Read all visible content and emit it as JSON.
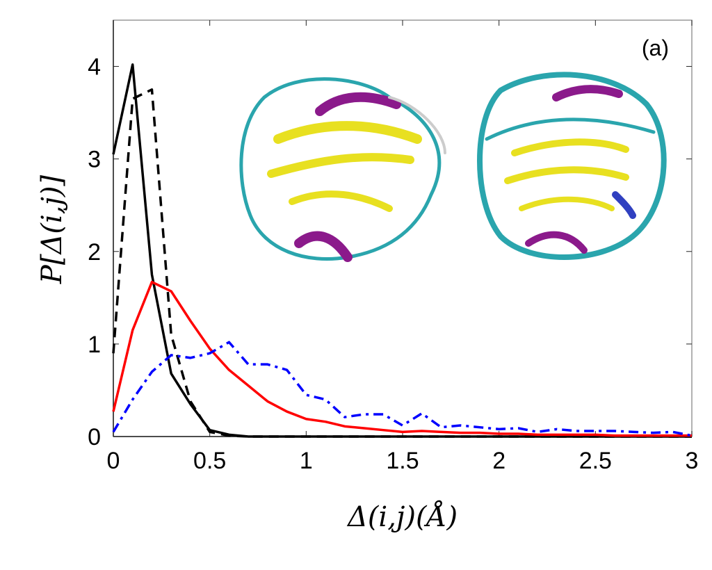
{
  "chart_data": {
    "type": "line",
    "title": "",
    "annotation": "(a)",
    "xlabel": "Δ(i,j)(Å)",
    "ylabel": "P[Δ(i,j)]",
    "xlim": [
      0,
      3
    ],
    "ylim": [
      0,
      4.5
    ],
    "xticks": [
      0,
      0.5,
      1,
      1.5,
      2,
      2.5,
      3
    ],
    "xtick_labels": [
      "0",
      "0.5",
      "1",
      "1.5",
      "2",
      "2.5",
      "3"
    ],
    "yticks": [
      0,
      1,
      2,
      3,
      4
    ],
    "ytick_labels": [
      "0",
      "1",
      "2",
      "3",
      "4"
    ],
    "grid": false,
    "series": [
      {
        "name": "black-solid",
        "color": "#000000",
        "style": "solid",
        "x": [
          0,
          0.1,
          0.2,
          0.3,
          0.4,
          0.5,
          0.6,
          0.7,
          1,
          1.5,
          2,
          2.5,
          3
        ],
        "y": [
          3.05,
          4.02,
          1.75,
          0.68,
          0.35,
          0.07,
          0.02,
          0,
          0,
          0,
          0,
          0,
          0
        ]
      },
      {
        "name": "black-dashed",
        "color": "#000000",
        "style": "dashed",
        "x": [
          0,
          0.1,
          0.2,
          0.3,
          0.4,
          0.5,
          0.6,
          0.7,
          1,
          1.5,
          2,
          2.5,
          3
        ],
        "y": [
          0.9,
          3.65,
          3.75,
          1.1,
          0.38,
          0.05,
          0.01,
          0,
          0,
          0,
          0,
          0,
          0
        ]
      },
      {
        "name": "red-solid",
        "color": "#ff0000",
        "style": "solid",
        "x": [
          0,
          0.1,
          0.2,
          0.3,
          0.4,
          0.5,
          0.6,
          0.7,
          0.8,
          0.9,
          1.0,
          1.1,
          1.2,
          1.3,
          1.4,
          1.5,
          1.6,
          1.7,
          1.8,
          1.9,
          2.0,
          2.1,
          2.2,
          2.3,
          2.4,
          2.5,
          2.6,
          2.7,
          2.8,
          2.9,
          3.0
        ],
        "y": [
          0.27,
          1.15,
          1.67,
          1.57,
          1.25,
          0.95,
          0.72,
          0.55,
          0.38,
          0.27,
          0.19,
          0.16,
          0.11,
          0.09,
          0.07,
          0.05,
          0.06,
          0.05,
          0.04,
          0.04,
          0.03,
          0.03,
          0.02,
          0.02,
          0.02,
          0.02,
          0.01,
          0.01,
          0.01,
          0.01,
          0.01
        ]
      },
      {
        "name": "blue-dashdot",
        "color": "#0000ff",
        "style": "dashdot",
        "x": [
          0,
          0.1,
          0.2,
          0.3,
          0.4,
          0.5,
          0.6,
          0.7,
          0.8,
          0.9,
          1.0,
          1.1,
          1.2,
          1.3,
          1.4,
          1.5,
          1.6,
          1.7,
          1.8,
          1.9,
          2.0,
          2.1,
          2.2,
          2.3,
          2.4,
          2.5,
          2.6,
          2.7,
          2.8,
          2.9,
          3.0
        ],
        "y": [
          0.05,
          0.4,
          0.7,
          0.88,
          0.85,
          0.9,
          1.02,
          0.78,
          0.78,
          0.72,
          0.45,
          0.4,
          0.21,
          0.24,
          0.24,
          0.12,
          0.25,
          0.1,
          0.12,
          0.1,
          0.08,
          0.09,
          0.05,
          0.08,
          0.06,
          0.06,
          0.06,
          0.05,
          0.04,
          0.05,
          0.01
        ]
      }
    ]
  }
}
